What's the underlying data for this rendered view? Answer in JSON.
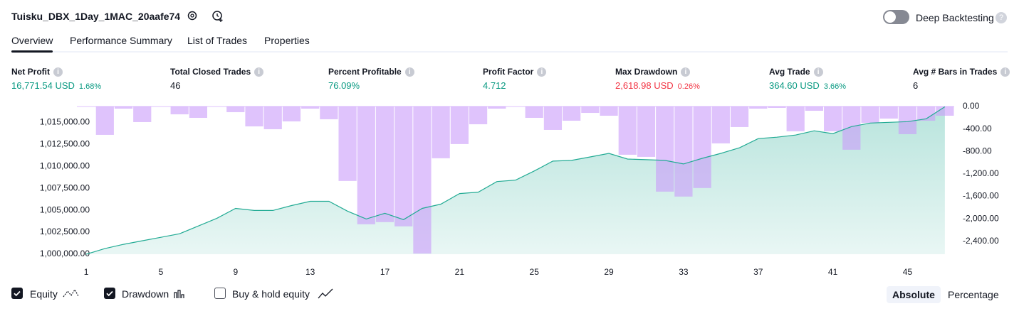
{
  "header": {
    "title": "Tuisku_DBX_1Day_1MAC_20aafe74",
    "toggle_label": "Deep Backtesting"
  },
  "tabs": [
    "Overview",
    "Performance Summary",
    "List of Trades",
    "Properties"
  ],
  "metrics": [
    {
      "label": "Net Profit",
      "value": "16,771.54 USD",
      "percent": "1.68%",
      "tone": "positive"
    },
    {
      "label": "Total Closed Trades",
      "value": "46",
      "tone": "neutral"
    },
    {
      "label": "Percent Profitable",
      "value": "76.09%",
      "tone": "positive"
    },
    {
      "label": "Profit Factor",
      "value": "4.712",
      "tone": "positive"
    },
    {
      "label": "Max Drawdown",
      "value": "2,618.98 USD",
      "percent": "0.26%",
      "tone": "negative"
    },
    {
      "label": "Avg Trade",
      "value": "364.60 USD",
      "percent": "3.66%",
      "tone": "positive"
    },
    {
      "label": "Avg # Bars in Trades",
      "value": "6",
      "tone": "neutral"
    }
  ],
  "chart_data": {
    "type": "combo",
    "x": [
      1,
      2,
      3,
      4,
      5,
      6,
      7,
      8,
      9,
      10,
      11,
      12,
      13,
      14,
      15,
      16,
      17,
      18,
      19,
      20,
      21,
      22,
      23,
      24,
      25,
      26,
      27,
      28,
      29,
      30,
      31,
      32,
      33,
      34,
      35,
      36,
      37,
      38,
      39,
      40,
      41,
      42,
      43,
      44,
      45,
      46,
      47
    ],
    "xlim": [
      0.5,
      47.5
    ],
    "xticks": [
      1,
      5,
      9,
      13,
      17,
      21,
      25,
      29,
      33,
      37,
      41,
      45
    ],
    "ylim": [
      1000000,
      1016800
    ],
    "yticks": [
      {
        "value": 1000000,
        "label": "1,000,000.00"
      },
      {
        "value": 1002500,
        "label": "1,002,500.00"
      },
      {
        "value": 1005000,
        "label": "1,005,000.00"
      },
      {
        "value": 1007500,
        "label": "1,007,500.00"
      },
      {
        "value": 1010000,
        "label": "1,010,000.00"
      },
      {
        "value": 1012500,
        "label": "1,012,500.00"
      },
      {
        "value": 1015000,
        "label": "1,015,000.00"
      }
    ],
    "y2lim": [
      -2630,
      0
    ],
    "y2ticks": [
      {
        "value": 0,
        "label": "0.00"
      },
      {
        "value": -400,
        "label": "-400.00"
      },
      {
        "value": -800,
        "label": "-800.00"
      },
      {
        "value": -1200,
        "label": "-1,200.00"
      },
      {
        "value": -1600,
        "label": "-1,600.00"
      },
      {
        "value": -2000,
        "label": "-2,000.00"
      },
      {
        "value": -2400,
        "label": "-2,400.00"
      }
    ],
    "series": [
      {
        "name": "Equity",
        "kind": "area",
        "color": "#22ab94",
        "checked": true,
        "values": [
          1000000,
          1000642,
          1001123,
          1001524,
          1001925,
          1002326,
          1003208,
          1004090,
          1005213,
          1004972,
          1004972,
          1005534,
          1006015,
          1006015,
          1004892,
          1004010,
          1004652,
          1003930,
          1005213,
          1005694,
          1006897,
          1007058,
          1008261,
          1008421,
          1009464,
          1010586,
          1010667,
          1011068,
          1011469,
          1010827,
          1010747,
          1010667,
          1010266,
          1010907,
          1011469,
          1012111,
          1013153,
          1013314,
          1013555,
          1014036,
          1013715,
          1014518,
          1014919,
          1014999,
          1015079,
          1015400,
          1016771.54
        ]
      },
      {
        "name": "Drawdown",
        "kind": "bar",
        "axis": "y2",
        "color": "#c99bfa",
        "checked": true,
        "values": [
          0,
          -505,
          -38,
          -278,
          0,
          -139,
          -202,
          0,
          -101,
          -354,
          -404,
          -265,
          -38,
          -227,
          -1326,
          -2097,
          -2059,
          -2134,
          -2618.98,
          -922,
          -669,
          -316,
          -38,
          0,
          -202,
          -417,
          -253,
          -114,
          -164,
          -859,
          -897,
          -1516,
          -1604,
          -1452,
          -657,
          -366,
          -38,
          -25,
          -442,
          -76,
          -442,
          -770,
          -290,
          -215,
          -493,
          -253,
          -164
        ]
      }
    ]
  },
  "extra_toggle": {
    "label": "Buy & hold equity",
    "checked": false
  },
  "modes": [
    "Absolute",
    "Percentage"
  ]
}
